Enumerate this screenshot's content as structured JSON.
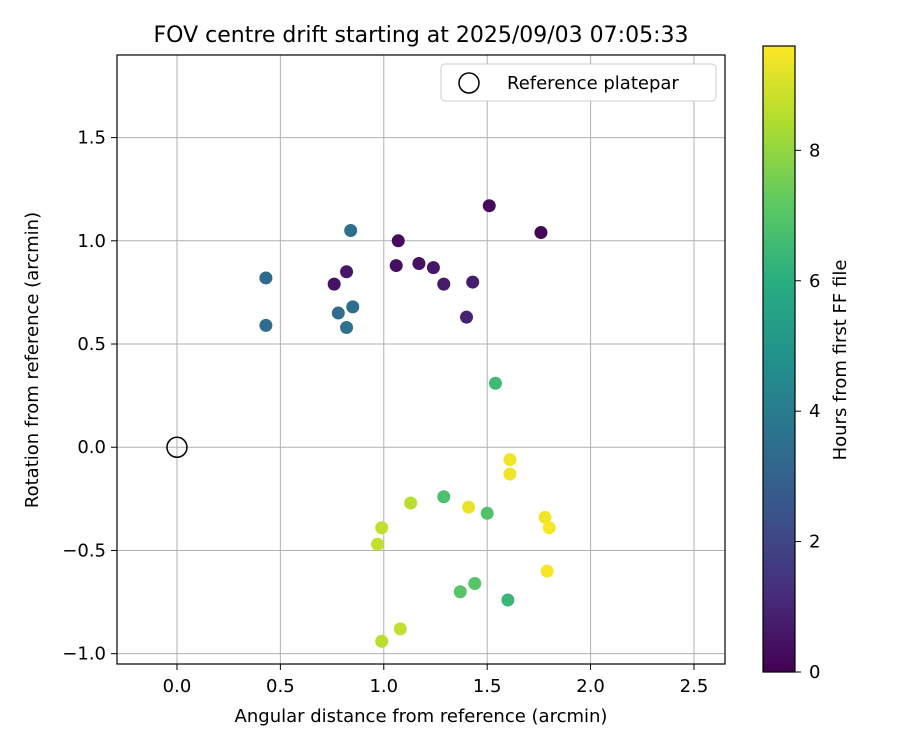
{
  "chart_data": {
    "type": "scatter",
    "title": "FOV centre drift starting at 2025/09/03 07:05:33",
    "xlabel": "Angular distance from reference (arcmin)",
    "ylabel": "Rotation from reference (arcmin)",
    "xlim": [
      -0.29,
      2.65
    ],
    "ylim": [
      -1.05,
      1.9
    ],
    "xticks": [
      0.0,
      0.5,
      1.0,
      1.5,
      2.0,
      2.5
    ],
    "xtick_labels": [
      "0.0",
      "0.5",
      "1.0",
      "1.5",
      "2.0",
      "2.5"
    ],
    "yticks": [
      -1.0,
      -0.5,
      0.0,
      0.5,
      1.0,
      1.5
    ],
    "ytick_labels": [
      "−1.0",
      "−0.5",
      "0.0",
      "0.5",
      "1.0",
      "1.5"
    ],
    "grid": true,
    "legend": {
      "position": "top-right",
      "entries": [
        "Reference platepar"
      ]
    },
    "reference_point": {
      "x": 0.0,
      "y": 0.0
    },
    "colorbar": {
      "label": "Hours from first FF file",
      "colormap": "viridis",
      "range": [
        0,
        9.6
      ],
      "ticks": [
        0,
        2,
        4,
        6,
        8
      ],
      "tick_labels": [
        "0",
        "2",
        "4",
        "6",
        "8"
      ]
    },
    "series": [
      {
        "points": [
          {
            "x": 1.51,
            "y": 1.17,
            "c": 0.2
          },
          {
            "x": 1.76,
            "y": 1.04,
            "c": 0.1
          },
          {
            "x": 1.07,
            "y": 1.0,
            "c": 0.3
          },
          {
            "x": 1.06,
            "y": 0.88,
            "c": 0.4
          },
          {
            "x": 1.17,
            "y": 0.89,
            "c": 0.5
          },
          {
            "x": 1.24,
            "y": 0.87,
            "c": 0.6
          },
          {
            "x": 1.29,
            "y": 0.79,
            "c": 0.7
          },
          {
            "x": 1.43,
            "y": 0.8,
            "c": 0.8
          },
          {
            "x": 1.4,
            "y": 0.63,
            "c": 0.9
          },
          {
            "x": 0.82,
            "y": 0.85,
            "c": 0.6
          },
          {
            "x": 0.76,
            "y": 0.79,
            "c": 0.5
          },
          {
            "x": 0.84,
            "y": 1.05,
            "c": 3.5
          },
          {
            "x": 0.43,
            "y": 0.82,
            "c": 3.3
          },
          {
            "x": 0.43,
            "y": 0.59,
            "c": 3.3
          },
          {
            "x": 0.78,
            "y": 0.65,
            "c": 3.4
          },
          {
            "x": 0.85,
            "y": 0.68,
            "c": 3.5
          },
          {
            "x": 0.82,
            "y": 0.58,
            "c": 3.6
          },
          {
            "x": 1.54,
            "y": 0.31,
            "c": 6.5
          },
          {
            "x": 1.29,
            "y": -0.24,
            "c": 6.8
          },
          {
            "x": 1.5,
            "y": -0.32,
            "c": 6.9
          },
          {
            "x": 1.44,
            "y": -0.66,
            "c": 7.0
          },
          {
            "x": 1.37,
            "y": -0.7,
            "c": 7.0
          },
          {
            "x": 1.6,
            "y": -0.74,
            "c": 6.4
          },
          {
            "x": 1.13,
            "y": -0.27,
            "c": 8.6
          },
          {
            "x": 0.99,
            "y": -0.39,
            "c": 8.7
          },
          {
            "x": 0.97,
            "y": -0.47,
            "c": 8.7
          },
          {
            "x": 1.08,
            "y": -0.88,
            "c": 8.7
          },
          {
            "x": 0.99,
            "y": -0.94,
            "c": 8.6
          },
          {
            "x": 1.41,
            "y": -0.29,
            "c": 9.3
          },
          {
            "x": 1.61,
            "y": -0.06,
            "c": 9.4
          },
          {
            "x": 1.61,
            "y": -0.13,
            "c": 9.4
          },
          {
            "x": 1.78,
            "y": -0.34,
            "c": 9.4
          },
          {
            "x": 1.8,
            "y": -0.39,
            "c": 9.5
          },
          {
            "x": 1.79,
            "y": -0.6,
            "c": 9.5
          }
        ]
      }
    ]
  }
}
